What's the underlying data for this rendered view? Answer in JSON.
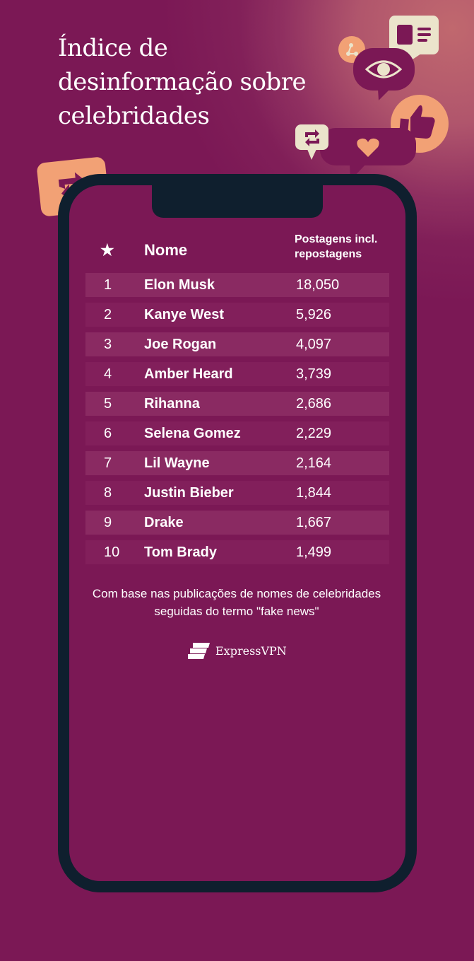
{
  "title": "Índice de desinformação sobre celebridades",
  "colors": {
    "background": "#7b1855",
    "phone": "#0f1f2e",
    "accent": "#f2a175",
    "cream": "#ebe4cb"
  },
  "chart_data": {
    "type": "table",
    "columns": [
      "★",
      "Nome",
      "Postagens incl. repostagens"
    ],
    "rows": [
      {
        "rank": "1",
        "name": "Elon Musk",
        "value": "18,050"
      },
      {
        "rank": "2",
        "name": "Kanye West",
        "value": "5,926"
      },
      {
        "rank": "3",
        "name": "Joe Rogan",
        "value": "4,097"
      },
      {
        "rank": "4",
        "name": "Amber Heard",
        "value": "3,739"
      },
      {
        "rank": "5",
        "name": "Rihanna",
        "value": "2,686"
      },
      {
        "rank": "6",
        "name": "Selena Gomez",
        "value": "2,229"
      },
      {
        "rank": "7",
        "name": "Lil Wayne",
        "value": "2,164"
      },
      {
        "rank": "8",
        "name": "Justin Bieber",
        "value": "1,844"
      },
      {
        "rank": "9",
        "name": "Drake",
        "value": "1,667"
      },
      {
        "rank": "10",
        "name": "Tom Brady",
        "value": "1,499"
      }
    ]
  },
  "header": {
    "name": "Nome",
    "posts_line1": "Postagens incl.",
    "posts_line2": "repostagens"
  },
  "note": "Com base nas publicações de nomes de celebridades seguidas do termo \"fake news\"",
  "brand": "ExpressVPN"
}
